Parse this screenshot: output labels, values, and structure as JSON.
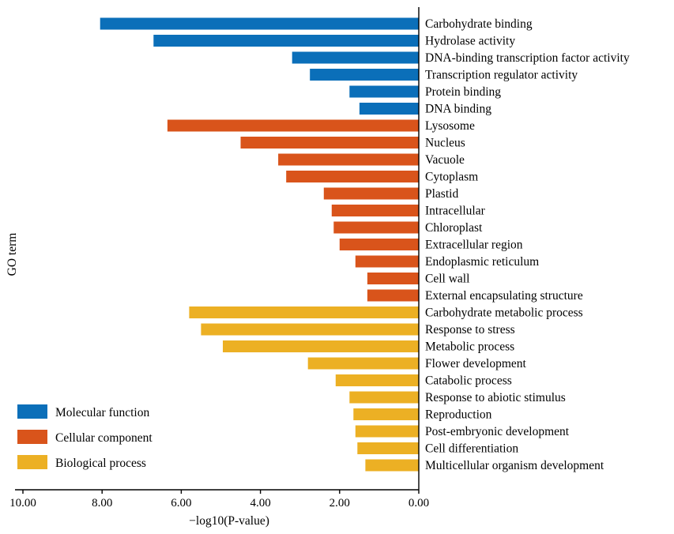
{
  "chart_data": {
    "type": "bar",
    "orientation": "horizontal",
    "xlabel": "−log10(P-value)",
    "ylabel": "GO term",
    "xlim": [
      10,
      0
    ],
    "xticks": [
      "10.00",
      "8.00",
      "6.00",
      "4.00",
      "2.00",
      "0.00"
    ],
    "grid": false,
    "legend_position": "bottom-left",
    "colors": {
      "Molecular function": "#0b6fb9",
      "Cellular component": "#d9541b",
      "Biological process": "#ecb024"
    },
    "legend": [
      "Molecular function",
      "Cellular component",
      "Biological process"
    ],
    "categories": [
      {
        "name": "Carbohydrate binding",
        "value": 8.05,
        "group": "Molecular function"
      },
      {
        "name": "Hydrolase activity",
        "value": 6.7,
        "group": "Molecular function"
      },
      {
        "name": "DNA-binding transcription factor activity",
        "value": 3.2,
        "group": "Molecular function"
      },
      {
        "name": "Transcription regulator activity",
        "value": 2.75,
        "group": "Molecular function"
      },
      {
        "name": "Protein binding",
        "value": 1.75,
        "group": "Molecular function"
      },
      {
        "name": "DNA binding",
        "value": 1.5,
        "group": "Molecular function"
      },
      {
        "name": "Lysosome",
        "value": 6.35,
        "group": "Cellular component"
      },
      {
        "name": "Nucleus",
        "value": 4.5,
        "group": "Cellular component"
      },
      {
        "name": "Vacuole",
        "value": 3.55,
        "group": "Cellular component"
      },
      {
        "name": "Cytoplasm",
        "value": 3.35,
        "group": "Cellular component"
      },
      {
        "name": "Plastid",
        "value": 2.4,
        "group": "Cellular component"
      },
      {
        "name": "Intracellular",
        "value": 2.2,
        "group": "Cellular component"
      },
      {
        "name": "Chloroplast",
        "value": 2.15,
        "group": "Cellular component"
      },
      {
        "name": "Extracellular region",
        "value": 2.0,
        "group": "Cellular component"
      },
      {
        "name": "Endoplasmic reticulum",
        "value": 1.6,
        "group": "Cellular component"
      },
      {
        "name": "Cell wall",
        "value": 1.3,
        "group": "Cellular component"
      },
      {
        "name": "External encapsulating structure",
        "value": 1.3,
        "group": "Cellular component"
      },
      {
        "name": "Carbohydrate metabolic process",
        "value": 5.8,
        "group": "Biological process"
      },
      {
        "name": "Response to stress",
        "value": 5.5,
        "group": "Biological process"
      },
      {
        "name": "Metabolic process",
        "value": 4.95,
        "group": "Biological process"
      },
      {
        "name": "Flower development",
        "value": 2.8,
        "group": "Biological process"
      },
      {
        "name": "Catabolic process",
        "value": 2.1,
        "group": "Biological process"
      },
      {
        "name": "Response to abiotic stimulus",
        "value": 1.75,
        "group": "Biological process"
      },
      {
        "name": "Reproduction",
        "value": 1.65,
        "group": "Biological process"
      },
      {
        "name": "Post-embryonic development",
        "value": 1.6,
        "group": "Biological process"
      },
      {
        "name": "Cell differentiation",
        "value": 1.55,
        "group": "Biological process"
      },
      {
        "name": "Multicellular organism development",
        "value": 1.35,
        "group": "Biological process"
      }
    ]
  }
}
